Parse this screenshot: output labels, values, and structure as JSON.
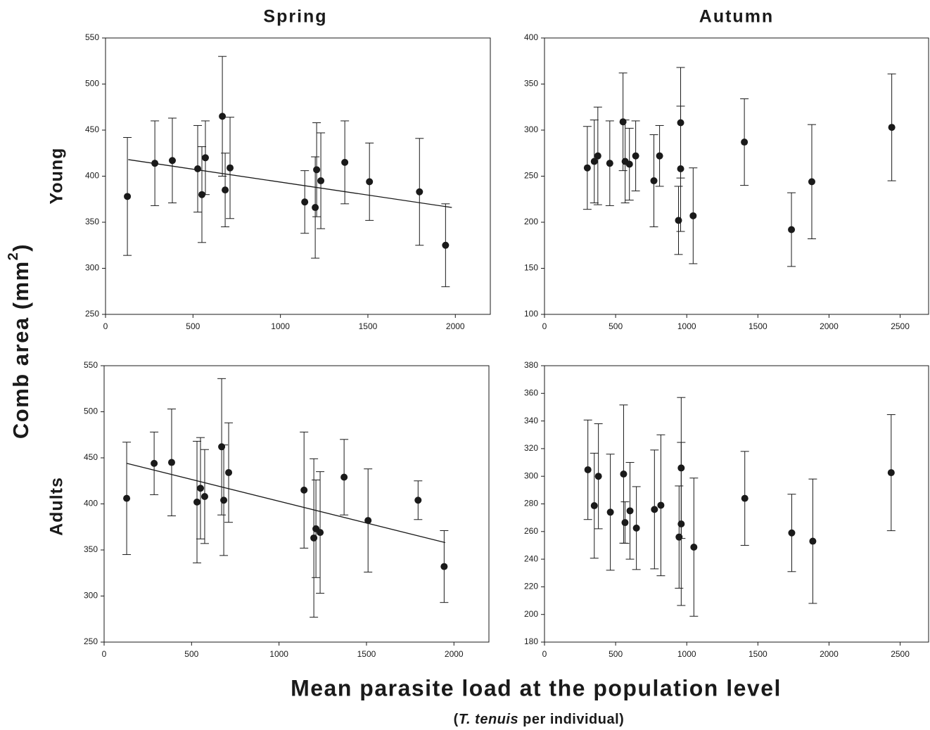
{
  "column_titles": [
    "Spring",
    "Autumn"
  ],
  "row_titles": [
    "Young",
    "Adults"
  ],
  "y_label": {
    "text": "Comb area (mm",
    "superscript": "2",
    "close": ")"
  },
  "x_label": "Mean parasite load at the population level",
  "x_sublabel": {
    "open": "(",
    "italic": "T. tenuis",
    "rest": " per individual)"
  },
  "chart_data": [
    {
      "type": "scatter",
      "color": "#1a1a1a",
      "x": [
        125,
        282,
        382,
        527,
        551,
        571,
        668,
        684,
        712,
        1139,
        1199,
        1207,
        1231,
        1368,
        1509,
        1795,
        1944
      ],
      "values": [
        378,
        414,
        417,
        408,
        380,
        420,
        465,
        385,
        409,
        372,
        366,
        407,
        395,
        415,
        394,
        383,
        325
      ],
      "errors": [
        64,
        46,
        46,
        47,
        52,
        40,
        65,
        40,
        55,
        34,
        55,
        51,
        52,
        45,
        42,
        58,
        45
      ],
      "fit": {
        "x": [
          130,
          1980
        ],
        "values": [
          418,
          366
        ]
      },
      "xlim": [
        0,
        2200
      ],
      "xticks": [
        0,
        500,
        1000,
        1500,
        2000
      ],
      "ylim": [
        250,
        550
      ],
      "yticks": [
        250,
        300,
        350,
        400,
        450,
        500,
        550
      ]
    },
    {
      "type": "scatter",
      "color": "#1a1a1a",
      "x": [
        301,
        350,
        375,
        459,
        552,
        567,
        597,
        641,
        769,
        809,
        942,
        957,
        957,
        1045,
        1405,
        1736,
        1879,
        2441
      ],
      "values": [
        259,
        266,
        272,
        264,
        309,
        266,
        263,
        272,
        245,
        272,
        202,
        308,
        258,
        207,
        287,
        192,
        244,
        303
      ],
      "errors": [
        45,
        45,
        53,
        46,
        53,
        45,
        39,
        38,
        50,
        33,
        37,
        60,
        68,
        52,
        47,
        40,
        62,
        58
      ],
      "xlim": [
        0,
        2700
      ],
      "xticks": [
        0,
        500,
        1000,
        1500,
        2000,
        2500
      ],
      "ylim": [
        100,
        400
      ],
      "yticks": [
        100,
        150,
        200,
        250,
        300,
        350,
        400
      ]
    },
    {
      "type": "scatter",
      "color": "#1a1a1a",
      "x": [
        129,
        286,
        386,
        531,
        551,
        575,
        672,
        684,
        712,
        1143,
        1199,
        1211,
        1235,
        1372,
        1509,
        1795,
        1944
      ],
      "values": [
        406,
        444,
        445,
        402,
        417,
        408,
        462,
        404,
        434,
        415,
        363,
        373,
        369,
        429,
        382,
        404,
        332
      ],
      "errors": [
        61,
        34,
        58,
        66,
        55,
        51,
        74,
        60,
        54,
        63,
        86,
        53,
        66,
        41,
        56,
        21,
        39
      ],
      "fit": {
        "x": [
          130,
          1950
        ],
        "values": [
          444,
          358
        ]
      },
      "xlim": [
        0,
        2200
      ],
      "xticks": [
        0,
        500,
        1000,
        1500,
        2000
      ],
      "ylim": [
        250,
        550
      ],
      "yticks": [
        250,
        300,
        350,
        400,
        450,
        500,
        550
      ]
    },
    {
      "type": "scatter",
      "color": "#1a1a1a",
      "x": [
        305,
        350,
        379,
        463,
        556,
        566,
        601,
        646,
        773,
        818,
        946,
        961,
        961,
        1050,
        1408,
        1738,
        1886,
        2437
      ],
      "values": [
        304.7,
        278.7,
        300,
        274,
        301.6,
        266.5,
        275,
        262.5,
        276,
        279,
        256,
        306,
        265.5,
        248.7,
        284,
        259,
        253,
        302.6
      ],
      "errors": [
        36,
        38,
        38,
        42,
        50,
        15,
        35,
        30,
        43,
        51,
        37,
        51,
        59,
        50,
        34,
        28,
        45,
        42
      ],
      "xlim": [
        0,
        2700
      ],
      "xticks": [
        0,
        500,
        1000,
        1500,
        2000,
        2500
      ],
      "ylim": [
        180,
        380
      ],
      "yticks": [
        180,
        200,
        220,
        240,
        260,
        280,
        300,
        320,
        340,
        360,
        380
      ]
    }
  ]
}
